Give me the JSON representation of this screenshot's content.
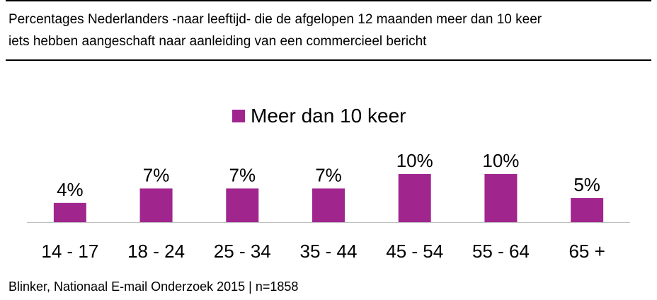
{
  "title_lines": [
    "Percentages Nederlanders -naar leeftijd- die de afgelopen 12 maanden meer dan 10 keer",
    "iets hebben aangeschaft naar aanleiding van een commercieel bericht"
  ],
  "source": "Blinker, Nationaal E-mail Onderzoek 2015 | n=1858",
  "colors": {
    "bar": "#A0268E",
    "axis": "#bfbfbf",
    "text": "#000000"
  },
  "chart_data": {
    "type": "bar",
    "categories": [
      "14 - 17",
      "18 - 24",
      "25 - 34",
      "35 - 44",
      "45 - 54",
      "55 - 64",
      "65 +"
    ],
    "series": [
      {
        "name": "Meer dan 10 keer",
        "values": [
          4,
          7,
          7,
          7,
          10,
          10,
          5
        ]
      }
    ],
    "data_labels": [
      "4%",
      "7%",
      "7%",
      "7%",
      "10%",
      "10%",
      "5%"
    ],
    "unit": "%",
    "ylim": [
      0,
      15
    ],
    "grid": false,
    "legend_position": "top"
  }
}
